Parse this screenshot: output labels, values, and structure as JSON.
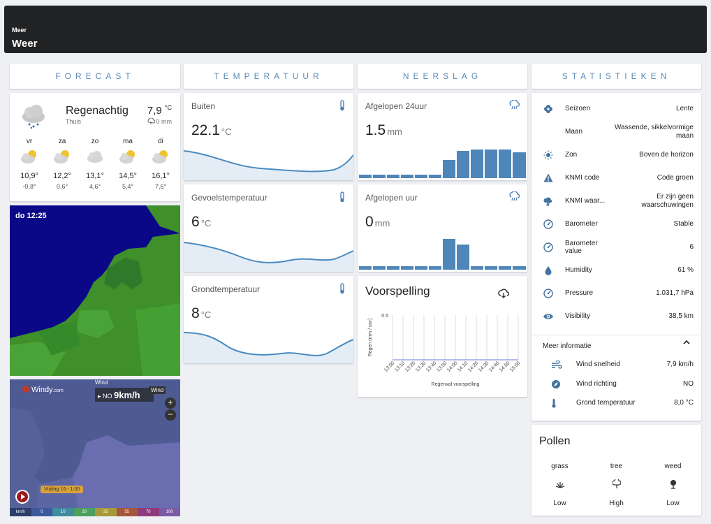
{
  "header": {
    "small": "Meer",
    "title": "Weer"
  },
  "columns": [
    "FORECAST",
    "TEMPERATUUR",
    "NEERSLAG",
    "STATISTIEKEN"
  ],
  "forecast": {
    "condition": "Regenachtig",
    "location": "Thuis",
    "temperature": "7,9",
    "temperature_unit": "°C",
    "precipitation": "0 mm",
    "days": [
      {
        "day": "vr",
        "high": "10,9°",
        "low": "-0,8°"
      },
      {
        "day": "za",
        "high": "12,2°",
        "low": "0,6°"
      },
      {
        "day": "zo",
        "high": "13,1°",
        "low": "4,6°"
      },
      {
        "day": "ma",
        "high": "14,5°",
        "low": "5,4°"
      },
      {
        "day": "di",
        "high": "16,1°",
        "low": "7,6°"
      }
    ]
  },
  "radar": {
    "timestamp": "do 12:25"
  },
  "windy": {
    "logo": "Windy",
    "logo_suffix": ".com",
    "wind_tag": "Wind",
    "direction": "NO",
    "speed": "9km/h",
    "layer_label": "Wind",
    "zoom_in": "+",
    "zoom_out": "−",
    "date": "Vrijdag 16 - 1:00",
    "scale": [
      "km/h",
      "0",
      "10",
      "20",
      "35",
      "55",
      "70",
      "100"
    ]
  },
  "temperature": [
    {
      "title": "Buiten",
      "value": "22.1",
      "unit": "°C"
    },
    {
      "title": "Gevoelstemperatuur",
      "value": "6",
      "unit": "°C"
    },
    {
      "title": "Grondtemperatuur",
      "value": "8",
      "unit": "°C"
    }
  ],
  "rain": [
    {
      "title": "Afgelopen 24uur",
      "value": "1.5",
      "unit": "mm"
    },
    {
      "title": "Afgelopen uur",
      "value": "0",
      "unit": "mm"
    }
  ],
  "voorspelling": {
    "title": "Voorspelling"
  },
  "chart_data": {
    "type": "line",
    "title": "",
    "xlabel": "Regenval voorspelling",
    "ylabel": "Regen (mm / uur)",
    "ylim": [
      0,
      0.5
    ],
    "y_ticks": [
      "0.5"
    ],
    "categories": [
      "13:00",
      "13:10",
      "13:20",
      "13:30",
      "13:40",
      "13:50",
      "14:00",
      "14:10",
      "14:20",
      "14:30",
      "14:40",
      "14:50",
      "15:00"
    ],
    "series": [
      {
        "values": [
          0,
          0,
          0,
          0,
          0,
          0,
          0,
          0,
          0,
          0,
          0,
          0,
          0
        ]
      }
    ],
    "grid": true,
    "color": "#9aa7e8"
  },
  "stats": [
    {
      "icon": "flower-icon",
      "label": "Seizoen",
      "value": "Lente"
    },
    {
      "icon": "moon-icon",
      "label": "Maan",
      "value": "Wassende, sikkelvormige maan"
    },
    {
      "icon": "sun-icon",
      "label": "Zon",
      "value": "Boven de horizon"
    },
    {
      "icon": "alert-icon",
      "label": "KNMI code",
      "value": "Code groen"
    },
    {
      "icon": "weather-alert-icon",
      "label": "KNMI waar...",
      "value": "Er zijn geen waarschuwingen"
    },
    {
      "icon": "gauge-icon",
      "label": "Barometer",
      "value": "Stable"
    },
    {
      "icon": "gauge-icon",
      "label": "Barometer value",
      "value": "6"
    },
    {
      "icon": "water-drop-icon",
      "label": "Humidity",
      "value": "61 %"
    },
    {
      "icon": "gauge-icon",
      "label": "Pressure",
      "value": "1.031,7 hPa"
    },
    {
      "icon": "eye-icon",
      "label": "Visibility",
      "value": "38,5 km"
    }
  ],
  "meer_info": {
    "title": "Meer informatie",
    "rows": [
      {
        "icon": "wind-icon",
        "label": "Wind snelheid",
        "value": "7,9 km/h"
      },
      {
        "icon": "compass-icon",
        "label": "Wind richting",
        "value": "NO"
      },
      {
        "icon": "thermometer-icon",
        "label": "Grond temperatuur",
        "value": "8,0 °C"
      }
    ]
  },
  "pollen": {
    "title": "Pollen",
    "items": [
      {
        "name": "grass",
        "level": "Low"
      },
      {
        "name": "tree",
        "level": "High"
      },
      {
        "name": "weed",
        "level": "Low"
      }
    ]
  }
}
